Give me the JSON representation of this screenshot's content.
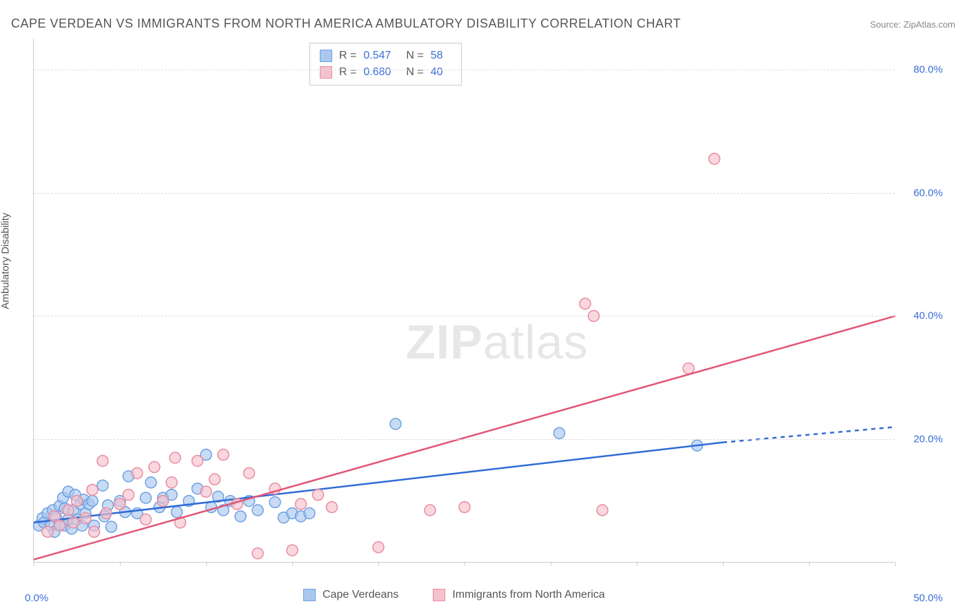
{
  "title": "CAPE VERDEAN VS IMMIGRANTS FROM NORTH AMERICA AMBULATORY DISABILITY CORRELATION CHART",
  "source": "Source: ZipAtlas.com",
  "y_axis_label": "Ambulatory Disability",
  "watermark_bold": "ZIP",
  "watermark_rest": "atlas",
  "chart": {
    "type": "scatter",
    "xlim": [
      0,
      50
    ],
    "ylim": [
      0,
      85
    ],
    "x_ticks": [
      0,
      5,
      10,
      15,
      20,
      25,
      30,
      35,
      40,
      45,
      50
    ],
    "x_tick_labels": {
      "0": "0.0%",
      "50": "50.0%"
    },
    "y_ticks": [
      20,
      40,
      60,
      80
    ],
    "y_tick_labels": [
      "20.0%",
      "40.0%",
      "60.0%",
      "80.0%"
    ],
    "grid_color": "#dddddd",
    "axis_color": "#cccccc",
    "background_color": "#ffffff",
    "marker_radius": 8,
    "marker_stroke_width": 1.5,
    "line_width": 2.5,
    "series": [
      {
        "name": "Cape Verdeans",
        "fill": "#a9c8ee",
        "stroke": "#6da0e2",
        "line_color": "#2e6bd6",
        "R": "0.547",
        "N": "58",
        "trend": {
          "x1": 0,
          "y1": 6.5,
          "x2": 40,
          "y2": 19.5,
          "dash_x2": 50,
          "dash_y2": 22.0
        },
        "points": [
          [
            0.3,
            6.0
          ],
          [
            0.5,
            7.2
          ],
          [
            0.6,
            6.5
          ],
          [
            0.8,
            8.0
          ],
          [
            1.0,
            6.0
          ],
          [
            1.1,
            8.5
          ],
          [
            1.2,
            5.0
          ],
          [
            1.3,
            7.3
          ],
          [
            1.5,
            9.2
          ],
          [
            1.5,
            6.2
          ],
          [
            1.7,
            10.5
          ],
          [
            1.8,
            8.8
          ],
          [
            1.8,
            6.0
          ],
          [
            2.0,
            11.5
          ],
          [
            2.0,
            7.0
          ],
          [
            2.2,
            5.5
          ],
          [
            2.3,
            8.5
          ],
          [
            2.4,
            11.0
          ],
          [
            2.5,
            7.0
          ],
          [
            2.7,
            9.5
          ],
          [
            2.8,
            6.0
          ],
          [
            2.9,
            10.2
          ],
          [
            3.0,
            8.0
          ],
          [
            3.2,
            9.5
          ],
          [
            3.4,
            10.0
          ],
          [
            3.5,
            6.0
          ],
          [
            4.0,
            12.5
          ],
          [
            4.1,
            7.5
          ],
          [
            4.3,
            9.3
          ],
          [
            4.5,
            5.8
          ],
          [
            5.0,
            10.0
          ],
          [
            5.3,
            8.2
          ],
          [
            5.5,
            14.0
          ],
          [
            6.0,
            8.0
          ],
          [
            6.5,
            10.5
          ],
          [
            6.8,
            13.0
          ],
          [
            7.3,
            9.0
          ],
          [
            7.5,
            10.5
          ],
          [
            8.0,
            11.0
          ],
          [
            8.3,
            8.2
          ],
          [
            9.0,
            10.0
          ],
          [
            9.5,
            12.0
          ],
          [
            10.0,
            17.5
          ],
          [
            10.3,
            9.0
          ],
          [
            10.7,
            10.7
          ],
          [
            11.0,
            8.5
          ],
          [
            11.4,
            10.0
          ],
          [
            12.0,
            7.5
          ],
          [
            12.5,
            10.0
          ],
          [
            13.0,
            8.5
          ],
          [
            14.0,
            9.8
          ],
          [
            14.5,
            7.3
          ],
          [
            15.0,
            8.0
          ],
          [
            15.5,
            7.5
          ],
          [
            16.0,
            8.0
          ],
          [
            21.0,
            22.5
          ],
          [
            30.5,
            21.0
          ],
          [
            38.5,
            19.0
          ]
        ]
      },
      {
        "name": "Immigrants from North America",
        "fill": "#f4c2cc",
        "stroke": "#e98ba0",
        "line_color": "#e15576",
        "R": "0.680",
        "N": "40",
        "trend": {
          "x1": 0,
          "y1": 0.5,
          "x2": 50,
          "y2": 40.0
        },
        "points": [
          [
            0.8,
            5.0
          ],
          [
            1.2,
            7.5
          ],
          [
            1.5,
            6.0
          ],
          [
            2.0,
            8.5
          ],
          [
            2.3,
            6.5
          ],
          [
            2.5,
            10.0
          ],
          [
            3.0,
            7.2
          ],
          [
            3.4,
            11.8
          ],
          [
            3.5,
            5.0
          ],
          [
            4.0,
            16.5
          ],
          [
            4.2,
            8.0
          ],
          [
            5.0,
            9.5
          ],
          [
            5.5,
            11.0
          ],
          [
            6.0,
            14.5
          ],
          [
            6.5,
            7.0
          ],
          [
            7.0,
            15.5
          ],
          [
            7.5,
            10.0
          ],
          [
            8.0,
            13.0
          ],
          [
            8.2,
            17.0
          ],
          [
            8.5,
            6.5
          ],
          [
            9.5,
            16.5
          ],
          [
            10.0,
            11.5
          ],
          [
            10.5,
            13.5
          ],
          [
            11.0,
            17.5
          ],
          [
            11.8,
            9.5
          ],
          [
            12.5,
            14.5
          ],
          [
            13.0,
            1.5
          ],
          [
            14.0,
            12.0
          ],
          [
            15.0,
            2.0
          ],
          [
            15.5,
            9.5
          ],
          [
            16.5,
            11.0
          ],
          [
            17.3,
            9.0
          ],
          [
            20.0,
            2.5
          ],
          [
            23.0,
            8.5
          ],
          [
            25.0,
            9.0
          ],
          [
            32.0,
            42.0
          ],
          [
            32.5,
            40.0
          ],
          [
            33.0,
            8.5
          ],
          [
            38.0,
            31.5
          ],
          [
            39.5,
            65.5
          ]
        ]
      }
    ]
  },
  "legend_labels": [
    "Cape Verdeans",
    "Immigrants from North America"
  ],
  "stat_labels": {
    "R": "R =",
    "N": "N ="
  }
}
